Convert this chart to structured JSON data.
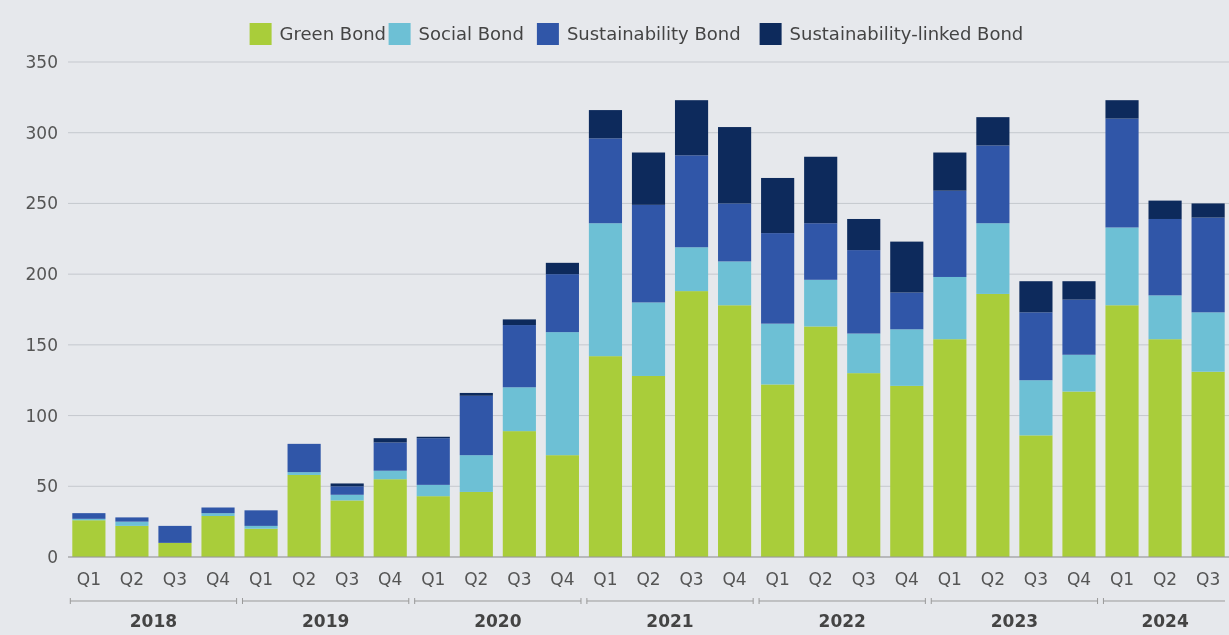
{
  "chart_data": {
    "type": "bar",
    "stacked": true,
    "categories": [
      "Q1",
      "Q2",
      "Q3",
      "Q4",
      "Q1",
      "Q2",
      "Q3",
      "Q4",
      "Q1",
      "Q2",
      "Q3",
      "Q4",
      "Q1",
      "Q2",
      "Q3",
      "Q4",
      "Q1",
      "Q2",
      "Q3",
      "Q4",
      "Q1",
      "Q2",
      "Q3",
      "Q4",
      "Q1",
      "Q2",
      "Q3"
    ],
    "series": [
      {
        "name": "Green Bond",
        "color": "#a9cd3a",
        "values": [
          26,
          22,
          10,
          29,
          20,
          58,
          40,
          55,
          43,
          46,
          89,
          72,
          142,
          128,
          188,
          178,
          122,
          163,
          130,
          121,
          154,
          186,
          86,
          117,
          178,
          154,
          131
        ]
      },
      {
        "name": "Social Bond",
        "color": "#6dc0d5",
        "values": [
          1,
          3,
          0,
          2,
          2,
          2,
          4,
          6,
          8,
          26,
          31,
          87,
          94,
          52,
          31,
          31,
          43,
          33,
          28,
          40,
          44,
          50,
          39,
          26,
          55,
          31,
          42
        ]
      },
      {
        "name": "Sustainability Bond",
        "color": "#3056a8",
        "values": [
          4,
          3,
          12,
          4,
          11,
          20,
          6,
          20,
          33,
          42,
          44,
          41,
          60,
          69,
          65,
          41,
          64,
          40,
          59,
          26,
          61,
          55,
          48,
          39,
          77,
          54,
          67
        ]
      },
      {
        "name": "Sustainability-linked Bond",
        "color": "#0d2a5c",
        "values": [
          0,
          0,
          0,
          0,
          0,
          0,
          2,
          3,
          1,
          2,
          4,
          8,
          20,
          37,
          39,
          54,
          39,
          47,
          22,
          36,
          27,
          20,
          22,
          13,
          13,
          13,
          10
        ]
      }
    ],
    "ylim": [
      0,
      350
    ],
    "yticks": [
      0,
      50,
      100,
      150,
      200,
      250,
      300,
      350
    ],
    "grid": "y",
    "legend": "top",
    "annotations": [
      "2018",
      "2019",
      "2020",
      "2021",
      "2022",
      "2023",
      "2024"
    ]
  }
}
